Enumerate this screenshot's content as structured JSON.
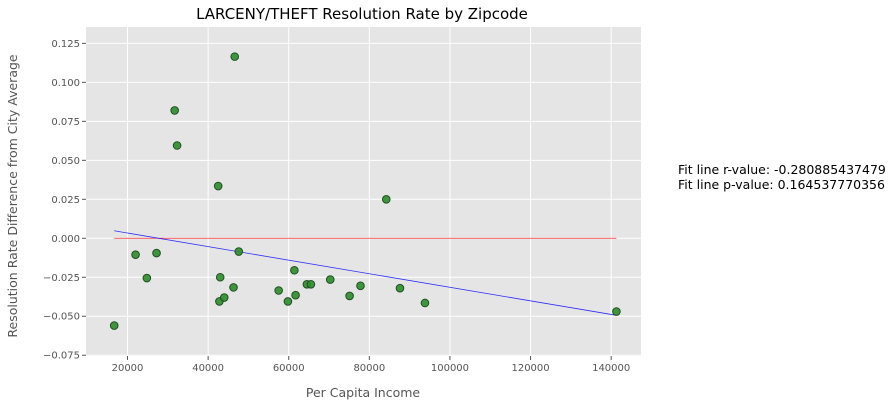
{
  "chart_data": {
    "type": "scatter",
    "title": "LARCENY/THEFT Resolution Rate by Zipcode",
    "xlabel": "Per Capita Income",
    "ylabel": "Resolution Rate Difference from City Average",
    "xlim": [
      9700,
      147400
    ],
    "ylim": [
      -0.0755,
      0.1355
    ],
    "xticks": [
      20000,
      40000,
      60000,
      80000,
      100000,
      120000,
      140000
    ],
    "yticks": [
      -0.075,
      -0.05,
      -0.025,
      0.0,
      0.025,
      0.05,
      0.075,
      0.1,
      0.125
    ],
    "xtick_labels": [
      "20000",
      "40000",
      "60000",
      "80000",
      "100000",
      "120000",
      "140000"
    ],
    "ytick_labels": [
      "−0.075",
      "−0.050",
      "−0.025",
      "0.000",
      "0.025",
      "0.050",
      "0.075",
      "0.100",
      "0.125"
    ],
    "grid": true,
    "colors": {
      "background": "#e5e5e5",
      "grid": "#ffffff",
      "points": "#2e8b2e",
      "point_edge": "#1f4f1f",
      "fit_line": "#0000ff",
      "zero_line": "#ff0000"
    },
    "points": [
      {
        "x": 16700,
        "y": -0.056
      },
      {
        "x": 22000,
        "y": -0.0105
      },
      {
        "x": 24800,
        "y": -0.0255
      },
      {
        "x": 27200,
        "y": -0.0095
      },
      {
        "x": 31700,
        "y": 0.082
      },
      {
        "x": 32300,
        "y": 0.0595
      },
      {
        "x": 42500,
        "y": 0.0335
      },
      {
        "x": 42800,
        "y": -0.0405
      },
      {
        "x": 43000,
        "y": -0.025
      },
      {
        "x": 44000,
        "y": -0.038
      },
      {
        "x": 46300,
        "y": -0.0315
      },
      {
        "x": 46600,
        "y": 0.1165
      },
      {
        "x": 47600,
        "y": -0.0085
      },
      {
        "x": 57500,
        "y": -0.0335
      },
      {
        "x": 59800,
        "y": -0.0405
      },
      {
        "x": 61400,
        "y": -0.0205
      },
      {
        "x": 61700,
        "y": -0.0365
      },
      {
        "x": 64500,
        "y": -0.0295
      },
      {
        "x": 65500,
        "y": -0.0295
      },
      {
        "x": 70300,
        "y": -0.0265
      },
      {
        "x": 75100,
        "y": -0.037
      },
      {
        "x": 77800,
        "y": -0.0305
      },
      {
        "x": 84200,
        "y": 0.025
      },
      {
        "x": 87600,
        "y": -0.032
      },
      {
        "x": 93800,
        "y": -0.0415
      },
      {
        "x": 141300,
        "y": -0.047
      }
    ],
    "fit_line": {
      "x": [
        16700,
        141300
      ],
      "y": [
        0.0048,
        -0.0494
      ]
    },
    "zero_line": {
      "x": [
        16700,
        141300
      ],
      "y": [
        0,
        0
      ]
    },
    "annotations": [
      "Fit line r-value: -0.280885437479",
      "Fit line p-value: 0.164537770356"
    ]
  }
}
